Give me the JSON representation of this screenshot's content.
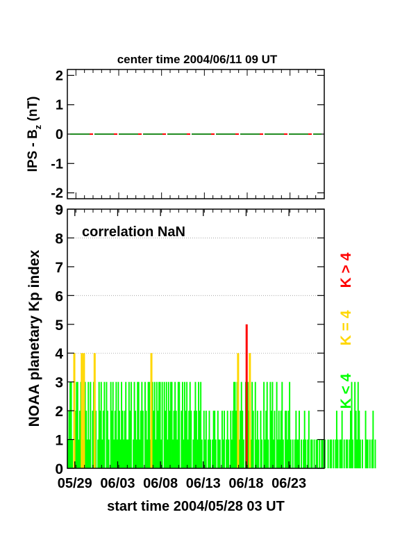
{
  "colors": {
    "quiet": "#00ff00",
    "moderate": "#ffd700",
    "storm": "#ff0000",
    "bz_dash_a": "#228b22",
    "bz_dash_b": "#ff0000"
  },
  "chart_data": [
    {
      "type": "line",
      "title": "center time 2004/06/11 09 UT",
      "ylabel_main": "IPS - B",
      "ylabel_sub": "z",
      "ylabel_unit": " (nT)",
      "xlim": [
        0,
        30
      ],
      "ylim": [
        -2.2,
        2.2
      ],
      "yticks": [
        2,
        1,
        0,
        -1,
        -2
      ],
      "series": [
        {
          "x": [
            0,
            30
          ],
          "values": [
            0,
            0
          ]
        }
      ]
    },
    {
      "type": "bar",
      "annotation": "correlation NaN",
      "ylabel": "NOAA planetary Kp index",
      "xlabel": "start time 2004/05/28 03 UT",
      "xlim": [
        0,
        30
      ],
      "ylim": [
        0,
        9
      ],
      "yticks": [
        9,
        8,
        7,
        6,
        5,
        4,
        3,
        2,
        1,
        0
      ],
      "grid": true,
      "xtick_labels": [
        "05/29",
        "06/03",
        "06/08",
        "06/13",
        "06/18",
        "06/23"
      ],
      "xtick_positions_days": [
        0.875,
        5.875,
        10.875,
        15.875,
        20.875,
        25.875
      ],
      "bin_hours": 3,
      "kp_values": [
        1,
        2,
        3,
        3,
        1,
        0,
        4,
        2,
        3,
        3,
        1,
        2,
        3,
        4,
        1,
        4,
        3,
        2,
        1,
        3,
        1,
        3,
        0,
        2,
        3,
        4,
        2,
        0,
        1,
        3,
        2,
        3,
        1,
        2,
        3,
        0,
        3,
        2,
        1,
        0,
        3,
        2,
        3,
        1,
        2,
        3,
        1,
        3,
        2,
        1,
        3,
        2,
        1,
        2,
        3,
        1,
        1,
        3,
        2,
        3,
        0,
        1,
        3,
        2,
        1,
        3,
        3,
        1,
        2,
        3,
        2,
        0,
        3,
        2,
        1,
        3,
        3,
        1,
        4,
        3,
        2,
        3,
        1,
        3,
        2,
        3,
        3,
        1,
        3,
        0,
        3,
        2,
        3,
        1,
        3,
        2,
        3,
        3,
        1,
        2,
        3,
        2,
        1,
        3,
        3,
        0,
        2,
        3,
        1,
        3,
        2,
        3,
        1,
        2,
        3,
        2,
        0,
        1,
        2,
        3,
        2,
        1,
        3,
        2,
        3,
        1,
        0,
        2,
        1,
        2,
        0,
        1,
        2,
        1,
        0,
        1,
        2,
        2,
        1,
        0,
        2,
        1,
        1,
        0,
        2,
        1,
        2,
        0,
        1,
        2,
        1,
        0,
        2,
        1,
        2,
        3,
        3,
        2,
        3,
        4,
        1,
        2,
        3,
        2,
        1,
        0,
        3,
        5,
        3,
        2,
        4,
        1,
        3,
        2,
        0,
        3,
        1,
        2,
        1,
        0,
        2,
        1,
        0,
        3,
        1,
        2,
        3,
        1,
        0,
        3,
        2,
        3,
        1,
        2,
        0,
        3,
        1,
        2,
        1,
        2,
        3,
        1,
        0,
        2,
        2,
        1,
        2,
        3,
        1,
        0,
        1,
        0,
        1,
        2,
        1,
        1,
        2,
        0,
        1,
        0,
        1,
        2,
        1,
        0,
        1,
        2,
        0,
        1,
        1,
        0,
        1,
        0,
        1,
        1,
        0,
        1,
        0,
        1,
        1,
        0,
        1,
        0,
        0,
        1,
        0,
        1,
        1,
        0,
        1,
        0,
        1,
        2,
        1,
        0,
        1,
        1,
        2,
        0,
        1,
        0,
        1,
        1,
        0,
        1,
        2,
        3,
        1,
        0,
        3,
        2,
        1,
        3,
        2,
        1,
        0,
        1,
        0,
        0,
        2,
        1,
        1,
        0,
        1,
        0,
        1,
        2,
        0,
        1
      ],
      "legend": [
        "K < 4",
        "K = 4",
        "K > 4"
      ]
    }
  ]
}
